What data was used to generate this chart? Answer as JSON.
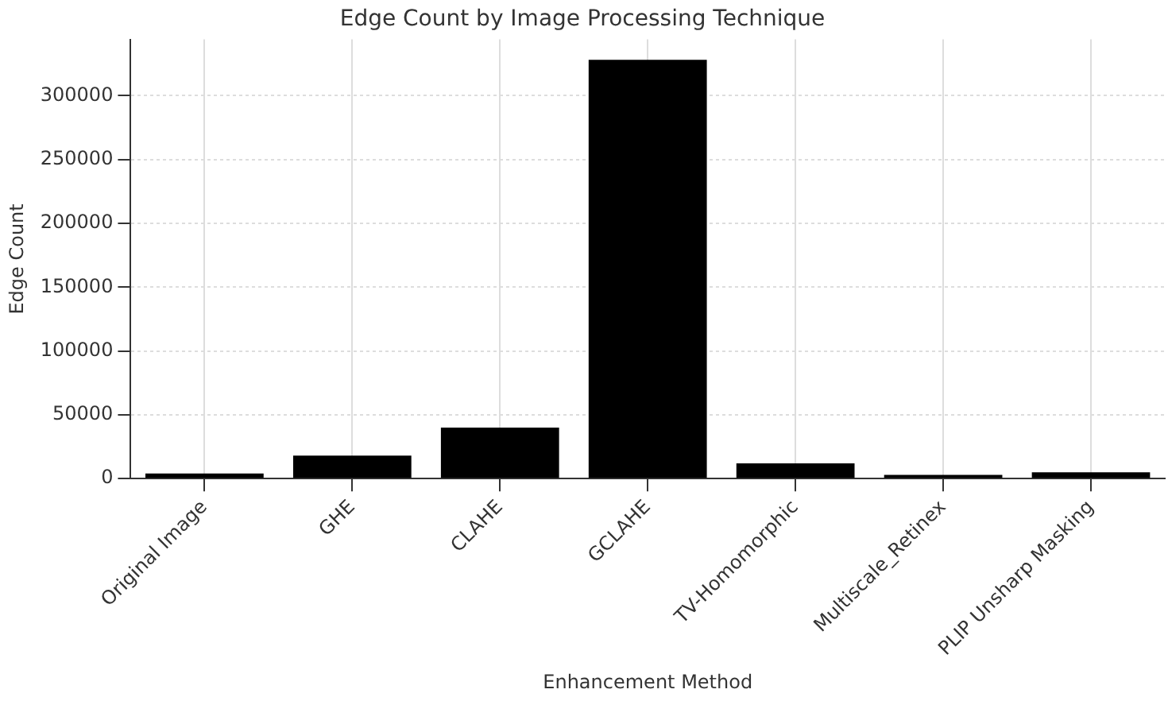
{
  "chart_data": {
    "type": "bar",
    "title": "Edge Count by Image Processing Technique",
    "xlabel": "Enhancement Method",
    "ylabel": "Edge Count",
    "categories": [
      "Original Image",
      "GHE",
      "CLAHE",
      "GCLAHE",
      "TV-Homomorphic",
      "Multiscale_Retinex",
      "PLIP Unsharp Masking"
    ],
    "values": [
      4000,
      18000,
      40000,
      328000,
      12000,
      3000,
      5000
    ],
    "color": "#000000",
    "ylim": [
      0,
      344000
    ],
    "yticks": [
      0,
      50000,
      100000,
      150000,
      200000,
      250000,
      300000
    ],
    "grid": true,
    "legend": false
  }
}
